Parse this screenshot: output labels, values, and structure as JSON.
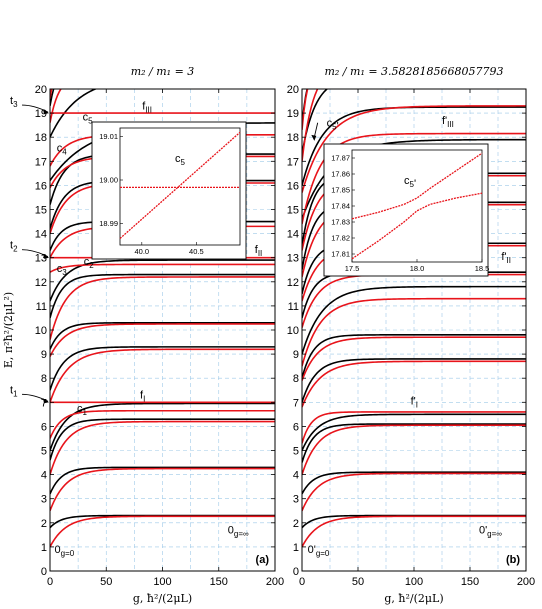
{
  "chart_data": [
    {
      "type": "line",
      "title": "m₂ / m₁ = 3",
      "xlabel": "g, ħ²/(2μL)",
      "ylabel": "E, π²ħ²/(2μL²)",
      "panel_label": "(a)",
      "xlim": [
        0,
        200
      ],
      "ylim": [
        0,
        20
      ],
      "xticks": [
        "0",
        "50",
        "100",
        "150",
        "200"
      ],
      "yticks": [
        "0",
        "1",
        "2",
        "3",
        "4",
        "5",
        "6",
        "7",
        "8",
        "9",
        "10",
        "11",
        "12",
        "13",
        "14",
        "15",
        "16",
        "17",
        "18",
        "19",
        "20"
      ],
      "grid": true,
      "flat_levels": [
        {
          "name": "fI",
          "label": "fI",
          "y": 7
        },
        {
          "name": "fII",
          "label": "fII",
          "y": 13
        },
        {
          "name": "fIII",
          "label": "fIII",
          "y": 19
        }
      ],
      "threshold_labels": [
        {
          "label": "t1",
          "y": 7
        },
        {
          "label": "t2",
          "y": 13
        },
        {
          "label": "t3",
          "y": 19
        }
      ],
      "series": [
        {
          "color": "#000000",
          "start": 1.8,
          "end": 2.3,
          "rate": 10
        },
        {
          "color": "#e8141b",
          "start": 1.0,
          "end": 2.27,
          "rate": 14
        },
        {
          "color": "#000000",
          "start": 3.2,
          "end": 4.3,
          "rate": 10
        },
        {
          "color": "#e8141b",
          "start": 2.5,
          "end": 4.25,
          "rate": 14
        },
        {
          "color": "#000000",
          "start": 4.6,
          "end": 6.3,
          "rate": 10
        },
        {
          "color": "#e8141b",
          "start": 4.0,
          "end": 6.2,
          "rate": 14
        },
        {
          "color": "#000000",
          "start": 5.0,
          "end": 6.95,
          "rate": 14
        },
        {
          "color": "#e8141b",
          "start": 5.5,
          "end": 6.65,
          "rate": 10
        },
        {
          "color": "#000000",
          "start": 7.5,
          "end": 9.3,
          "rate": 12
        },
        {
          "color": "#e8141b",
          "start": 7.0,
          "end": 9.2,
          "rate": 16
        },
        {
          "color": "#000000",
          "start": 9.2,
          "end": 10.3,
          "rate": 10
        },
        {
          "color": "#e8141b",
          "start": 8.9,
          "end": 10.25,
          "rate": 14
        },
        {
          "color": "#000000",
          "start": 10.5,
          "end": 12.3,
          "rate": 10
        },
        {
          "color": "#e8141b",
          "start": 9.6,
          "end": 12.2,
          "rate": 14
        },
        {
          "color": "#000000",
          "start": 11.2,
          "end": 12.9,
          "rate": 14
        },
        {
          "color": "#e8141b",
          "start": 12.4,
          "end": 12.72,
          "rate": 12
        },
        {
          "color": "#000000",
          "start": 13.3,
          "end": 14.5,
          "rate": 10
        },
        {
          "color": "#e8141b",
          "start": 13.0,
          "end": 14.3,
          "rate": 14
        },
        {
          "color": "#000000",
          "start": 14.2,
          "end": 16.2,
          "rate": 12
        },
        {
          "color": "#e8141b",
          "start": 14.0,
          "end": 16.1,
          "rate": 14
        },
        {
          "color": "#000000",
          "start": 15.2,
          "end": 17.3,
          "rate": 12
        },
        {
          "color": "#e8141b",
          "start": 15.9,
          "end": 17.2,
          "rate": 14
        },
        {
          "color": "#000000",
          "start": 16.2,
          "end": 18.6,
          "rate": 35
        },
        {
          "color": "#e8141b",
          "start": 16.8,
          "end": 18.1,
          "rate": 14
        },
        {
          "color": "#000000",
          "start": 18.0,
          "end": 20.5,
          "rate": 25
        },
        {
          "color": "#e8141b",
          "start": 18.6,
          "end": 20.6,
          "rate": 8
        },
        {
          "color": "#000000",
          "start": 19.3,
          "end": 21.0,
          "rate": 6
        },
        {
          "color": "#e8141b",
          "start": 19.6,
          "end": 21.0,
          "rate": 4
        }
      ],
      "annotations": [
        {
          "text": "c1",
          "x": 24,
          "y": 6.6
        },
        {
          "text": "c2",
          "x": 30,
          "y": 12.7
        },
        {
          "text": "c3",
          "x": 6,
          "y": 12.4
        },
        {
          "text": "c4",
          "x": 6,
          "y": 17.4
        },
        {
          "text": "c5",
          "x": 29,
          "y": 18.7
        },
        {
          "text": "fI",
          "x": 80,
          "y": 7.15
        },
        {
          "text": "fII",
          "x": 182,
          "y": 13.2
        },
        {
          "text": "fIII",
          "x": 82,
          "y": 19.15
        },
        {
          "text": "0g=0",
          "x": 4,
          "y": 0.75
        },
        {
          "text": "0g=∞",
          "x": 158,
          "y": 1.55
        }
      ],
      "inset": {
        "label": "c5",
        "xlim": [
          39.8,
          40.9
        ],
        "ylim": [
          18.985,
          19.012
        ],
        "xticks": [
          "40.0",
          "40.5"
        ],
        "yticks": [
          "18.99",
          "19.00",
          "19.01"
        ],
        "lines": [
          {
            "color": "#e8141b",
            "style": "flat",
            "points": [
              [
                39.8,
                18.9983
              ],
              [
                40.9,
                18.9983
              ]
            ]
          },
          {
            "color": "#e8141b",
            "style": "diag",
            "points": [
              [
                39.8,
                18.9865
              ],
              [
                40.9,
                19.011
              ]
            ]
          }
        ]
      }
    },
    {
      "type": "line",
      "title": "m₂ / m₁ = 3.5828185668057793",
      "xlabel": "g, ħ²/(2μL)",
      "ylabel": "",
      "panel_label": "(b)",
      "xlim": [
        0,
        200
      ],
      "ylim": [
        0,
        20
      ],
      "xticks": [
        "0",
        "50",
        "100",
        "150",
        "200"
      ],
      "yticks": [
        "0",
        "1",
        "2",
        "3",
        "4",
        "5",
        "6",
        "7",
        "8",
        "9",
        "10",
        "11",
        "12",
        "13",
        "14",
        "15",
        "16",
        "17",
        "18",
        "19",
        "20"
      ],
      "grid": true,
      "flat_levels": [],
      "threshold_labels": [],
      "series": [
        {
          "color": "#000000",
          "start": 1.8,
          "end": 2.3,
          "rate": 10
        },
        {
          "color": "#e8141b",
          "start": 1.0,
          "end": 2.27,
          "rate": 14
        },
        {
          "color": "#000000",
          "start": 3.2,
          "end": 4.1,
          "rate": 10
        },
        {
          "color": "#e8141b",
          "start": 2.5,
          "end": 4.05,
          "rate": 14
        },
        {
          "color": "#000000",
          "start": 4.5,
          "end": 6.1,
          "rate": 10
        },
        {
          "color": "#e8141b",
          "start": 4.0,
          "end": 6.05,
          "rate": 14
        },
        {
          "color": "#000000",
          "start": 5.0,
          "end": 6.5,
          "rate": 14
        },
        {
          "color": "#e8141b",
          "start": 5.3,
          "end": 6.6,
          "rate": 8
        },
        {
          "color": "#000000",
          "start": 7.0,
          "end": 8.8,
          "rate": 12
        },
        {
          "color": "#e8141b",
          "start": 6.8,
          "end": 8.7,
          "rate": 16
        },
        {
          "color": "#000000",
          "start": 8.0,
          "end": 9.8,
          "rate": 10
        },
        {
          "color": "#e8141b",
          "start": 7.9,
          "end": 9.7,
          "rate": 14
        },
        {
          "color": "#000000",
          "start": 9.0,
          "end": 11.8,
          "rate": 18
        },
        {
          "color": "#e8141b",
          "start": 8.5,
          "end": 11.3,
          "rate": 16
        },
        {
          "color": "#000000",
          "start": 10.5,
          "end": 12.4,
          "rate": 10
        },
        {
          "color": "#e8141b",
          "start": 10.1,
          "end": 12.3,
          "rate": 14
        },
        {
          "color": "#000000",
          "start": 11.5,
          "end": 13.6,
          "rate": 10
        },
        {
          "color": "#e8141b",
          "start": 11.2,
          "end": 13.5,
          "rate": 14
        },
        {
          "color": "#000000",
          "start": 12.5,
          "end": 15.3,
          "rate": 10
        },
        {
          "color": "#e8141b",
          "start": 12.2,
          "end": 15.2,
          "rate": 14
        },
        {
          "color": "#000000",
          "start": 13.5,
          "end": 16.5,
          "rate": 10
        },
        {
          "color": "#e8141b",
          "start": 13.3,
          "end": 16.4,
          "rate": 14
        },
        {
          "color": "#000000",
          "start": 14.6,
          "end": 17.9,
          "rate": 25
        },
        {
          "color": "#e8141b",
          "start": 14.4,
          "end": 18.15,
          "rate": 16
        },
        {
          "color": "#000000",
          "start": 16.0,
          "end": 19.25,
          "rate": 18
        },
        {
          "color": "#e8141b",
          "start": 15.7,
          "end": 19.3,
          "rate": 22
        },
        {
          "color": "#000000",
          "start": 17.3,
          "end": 20.5,
          "rate": 12
        },
        {
          "color": "#e8141b",
          "start": 17.0,
          "end": 21.0,
          "rate": 10
        },
        {
          "color": "#000000",
          "start": 18.5,
          "end": 21.0,
          "rate": 5
        },
        {
          "color": "#e8141b",
          "start": 18.3,
          "end": 21.0,
          "rate": 5
        }
      ],
      "annotations": [
        {
          "text": "c5'",
          "x": 22,
          "y": 18.45
        },
        {
          "text": "f'III",
          "x": 125,
          "y": 18.55
        },
        {
          "text": "f'II",
          "x": 178,
          "y": 12.9
        },
        {
          "text": "f'I",
          "x": 97,
          "y": 6.9
        },
        {
          "text": "0'g=0",
          "x": 5,
          "y": 0.75
        },
        {
          "text": "0'g=∞",
          "x": 158,
          "y": 1.55
        }
      ],
      "inset": {
        "label": "c5'",
        "xlim": [
          17.5,
          18.5
        ],
        "ylim": [
          17.805,
          17.875
        ],
        "xticks": [
          "17.5",
          "18.0",
          "18.5"
        ],
        "yticks": [
          "17.81",
          "17.82",
          "17.83",
          "17.84",
          "17.85",
          "17.86",
          "17.87"
        ],
        "lines": [
          {
            "color": "#e8141b",
            "style": "upper",
            "points": [
              [
                17.5,
                17.832
              ],
              [
                17.7,
                17.836
              ],
              [
                17.9,
                17.841
              ],
              [
                18.0,
                17.845
              ],
              [
                18.1,
                17.851
              ],
              [
                18.3,
                17.862
              ],
              [
                18.5,
                17.873
              ]
            ]
          },
          {
            "color": "#e8141b",
            "style": "lower",
            "points": [
              [
                17.5,
                17.807
              ],
              [
                17.7,
                17.818
              ],
              [
                17.9,
                17.83
              ],
              [
                18.0,
                17.837
              ],
              [
                18.1,
                17.841
              ],
              [
                18.3,
                17.845
              ],
              [
                18.5,
                17.848
              ]
            ]
          }
        ]
      }
    }
  ]
}
